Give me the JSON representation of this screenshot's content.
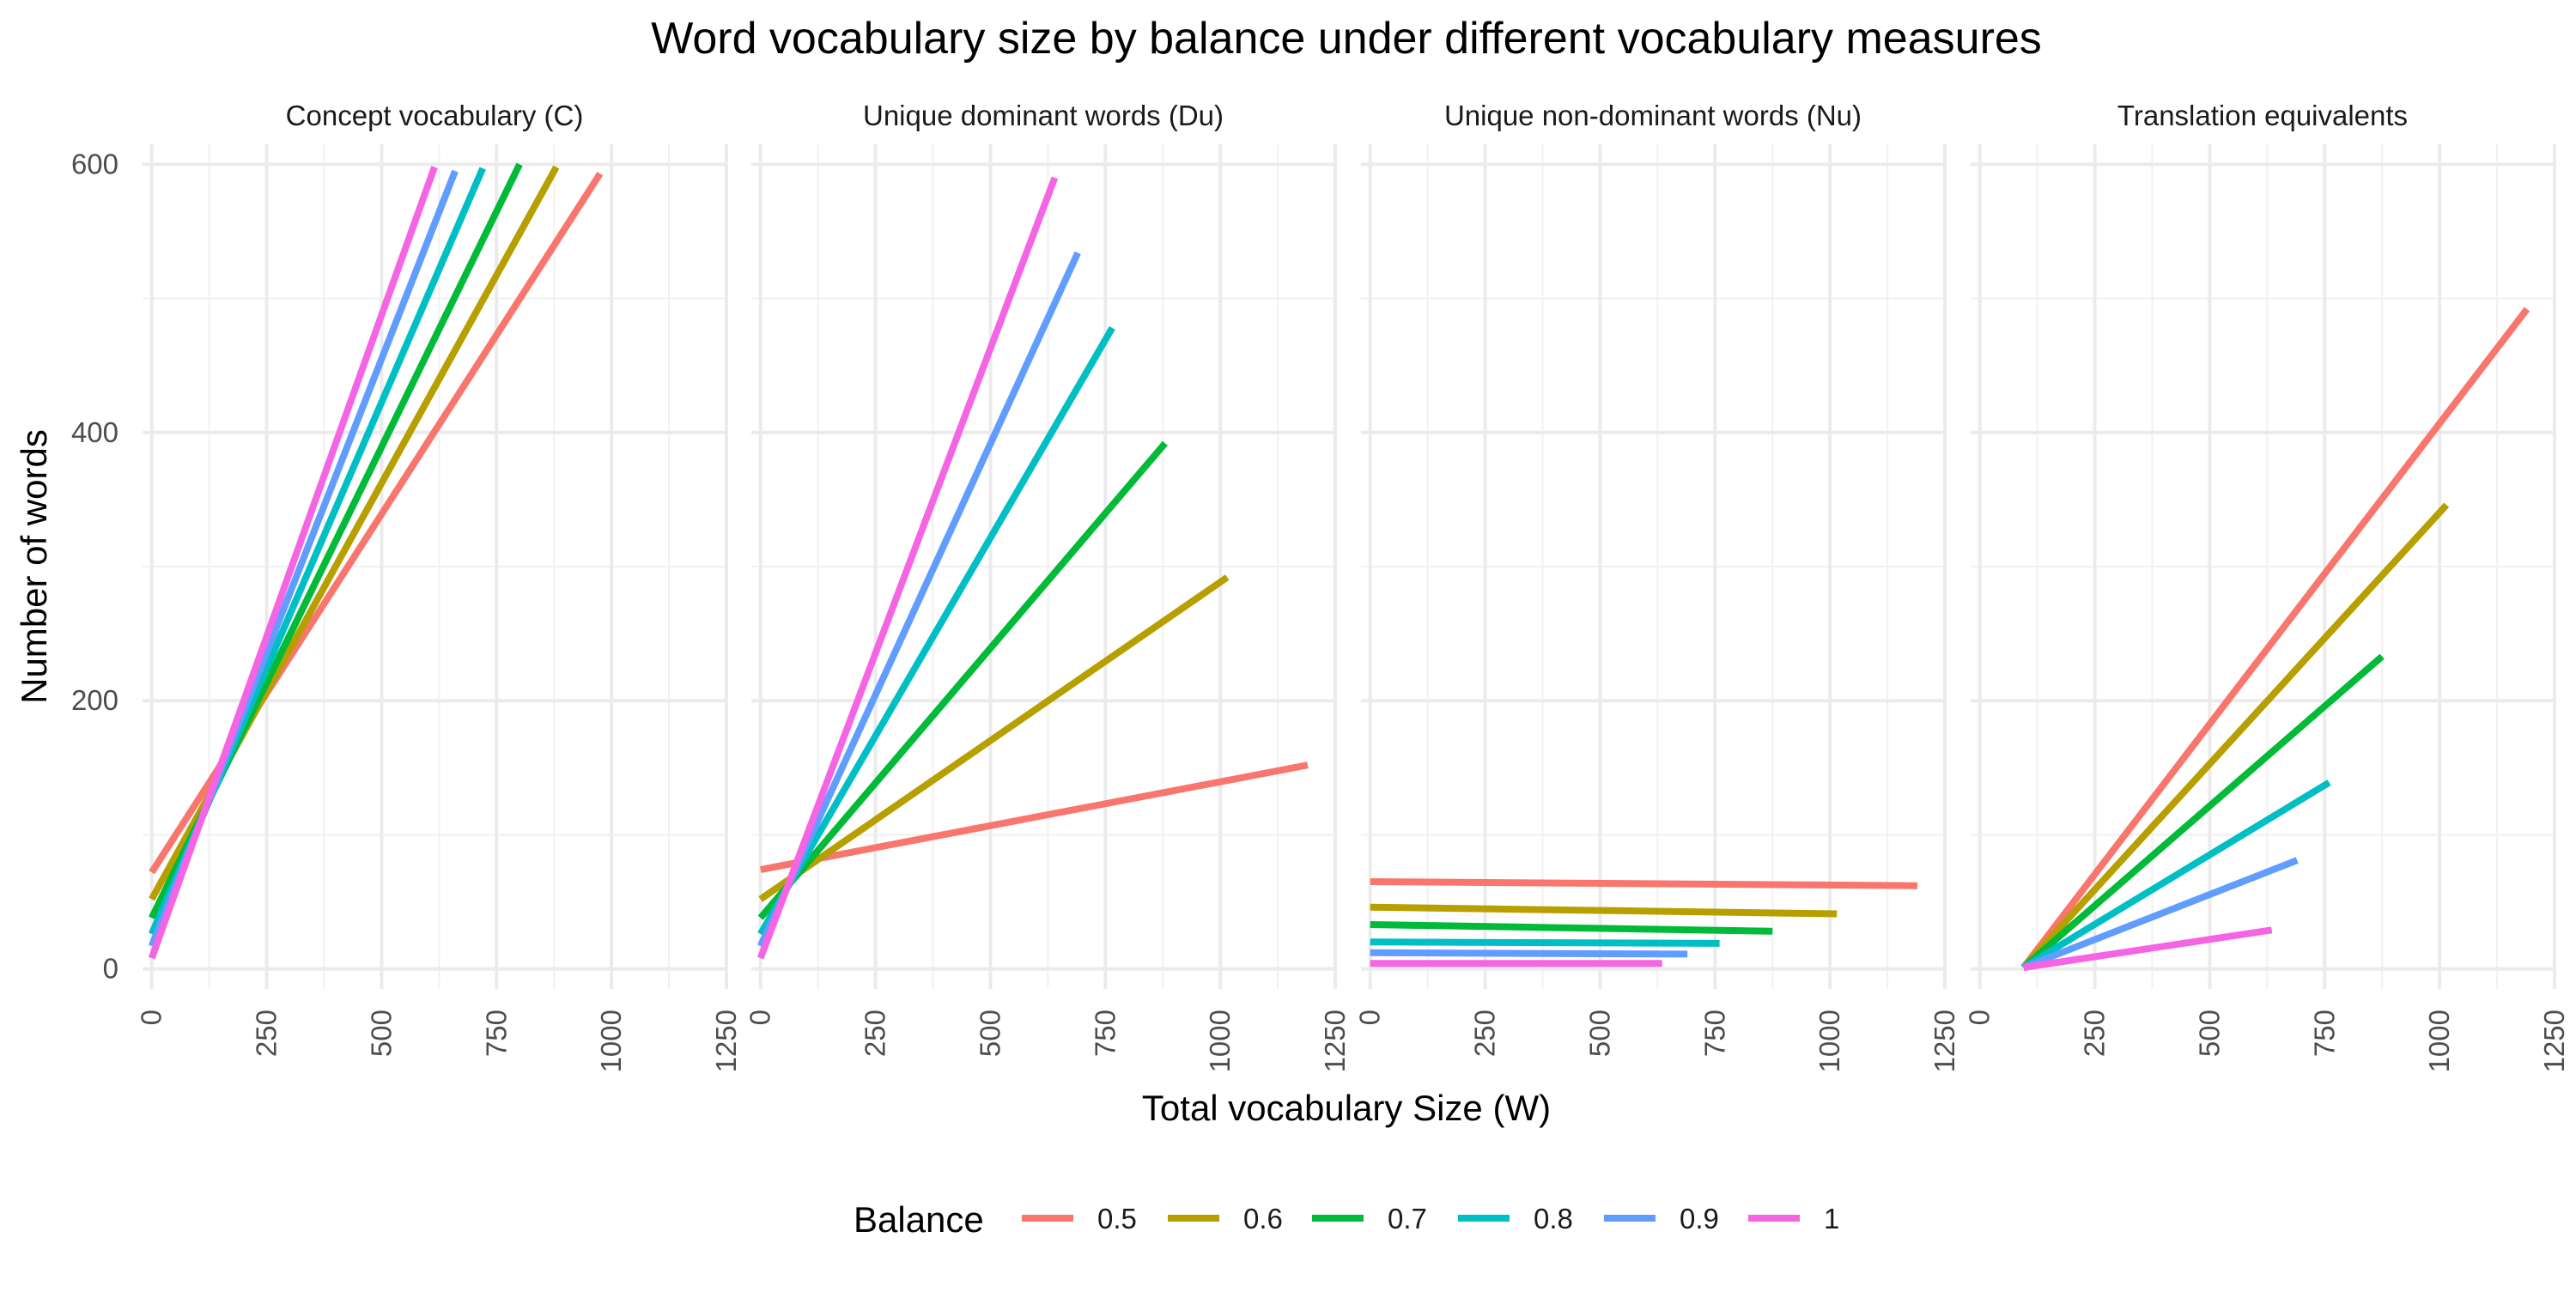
{
  "chart_data": {
    "type": "line",
    "title": "Word vocabulary size by balance under different vocabulary measures",
    "xlabel": "Total vocabulary Size (W)",
    "ylabel": "Number of words",
    "xlim": [
      -20,
      1250
    ],
    "ylim": [
      -15,
      615
    ],
    "x_ticks": [
      "0",
      "250",
      "500",
      "750",
      "1000",
      "1250"
    ],
    "y_ticks": [
      "0",
      "200",
      "400",
      "600"
    ],
    "grid": true,
    "legend": {
      "title": "Balance",
      "position": "bottom",
      "items": [
        {
          "label": "0.5",
          "color": "#F8766D"
        },
        {
          "label": "0.6",
          "color": "#B79F00"
        },
        {
          "label": "0.7",
          "color": "#00BA38"
        },
        {
          "label": "0.8",
          "color": "#00BFC4"
        },
        {
          "label": "0.9",
          "color": "#619CFF"
        },
        {
          "label": "1",
          "color": "#F564E3"
        }
      ]
    },
    "panels": [
      {
        "title": "Concept vocabulary (C)",
        "series": [
          {
            "name": "0.5",
            "color": "#F8766D",
            "x": [
              0,
              975
            ],
            "y": [
              72,
              593
            ]
          },
          {
            "name": "0.6",
            "color": "#B79F00",
            "x": [
              0,
              880
            ],
            "y": [
              52,
              598
            ]
          },
          {
            "name": "0.7",
            "color": "#00BA38",
            "x": [
              0,
              800
            ],
            "y": [
              38,
              600
            ]
          },
          {
            "name": "0.8",
            "color": "#00BFC4",
            "x": [
              0,
              720
            ],
            "y": [
              26,
              597
            ]
          },
          {
            "name": "0.9",
            "color": "#619CFF",
            "x": [
              0,
              660
            ],
            "y": [
              17,
              595
            ]
          },
          {
            "name": "1",
            "color": "#F564E3",
            "x": [
              0,
              615
            ],
            "y": [
              8,
              598
            ]
          }
        ]
      },
      {
        "title": "Unique dominant words (Du)",
        "series": [
          {
            "name": "0.5",
            "color": "#F8766D",
            "x": [
              0,
              1190
            ],
            "y": [
              74,
              152
            ]
          },
          {
            "name": "0.6",
            "color": "#B79F00",
            "x": [
              0,
              1015
            ],
            "y": [
              52,
              292
            ]
          },
          {
            "name": "0.7",
            "color": "#00BA38",
            "x": [
              0,
              880
            ],
            "y": [
              38,
              392
            ]
          },
          {
            "name": "0.8",
            "color": "#00BFC4",
            "x": [
              0,
              765
            ],
            "y": [
              26,
              478
            ]
          },
          {
            "name": "0.9",
            "color": "#619CFF",
            "x": [
              0,
              690
            ],
            "y": [
              17,
              534
            ]
          },
          {
            "name": "1",
            "color": "#F564E3",
            "x": [
              0,
              640
            ],
            "y": [
              8,
              590
            ]
          }
        ]
      },
      {
        "title": "Unique non-dominant words (Nu)",
        "series": [
          {
            "name": "0.5",
            "color": "#F8766D",
            "x": [
              0,
              1190
            ],
            "y": [
              65,
              62
            ]
          },
          {
            "name": "0.6",
            "color": "#B79F00",
            "x": [
              0,
              1015
            ],
            "y": [
              46,
              41
            ]
          },
          {
            "name": "0.7",
            "color": "#00BA38",
            "x": [
              0,
              875
            ],
            "y": [
              33,
              28
            ]
          },
          {
            "name": "0.8",
            "color": "#00BFC4",
            "x": [
              0,
              760
            ],
            "y": [
              20,
              19
            ]
          },
          {
            "name": "0.9",
            "color": "#619CFF",
            "x": [
              0,
              690
            ],
            "y": [
              12,
              11
            ]
          },
          {
            "name": "1",
            "color": "#F564E3",
            "x": [
              0,
              635
            ],
            "y": [
              4,
              4
            ]
          }
        ]
      },
      {
        "title": "Translation equivalents",
        "series": [
          {
            "name": "0.5",
            "color": "#F8766D",
            "x": [
              95,
              1190
            ],
            "y": [
              1,
              492
            ]
          },
          {
            "name": "0.6",
            "color": "#B79F00",
            "x": [
              95,
              1015
            ],
            "y": [
              1,
              346
            ]
          },
          {
            "name": "0.7",
            "color": "#00BA38",
            "x": [
              95,
              875
            ],
            "y": [
              1,
              233
            ]
          },
          {
            "name": "0.8",
            "color": "#00BFC4",
            "x": [
              95,
              760
            ],
            "y": [
              1,
              139
            ]
          },
          {
            "name": "0.9",
            "color": "#619CFF",
            "x": [
              95,
              690
            ],
            "y": [
              1,
              81
            ]
          },
          {
            "name": "1",
            "color": "#F564E3",
            "x": [
              95,
              635
            ],
            "y": [
              1,
              29
            ]
          }
        ]
      }
    ]
  }
}
